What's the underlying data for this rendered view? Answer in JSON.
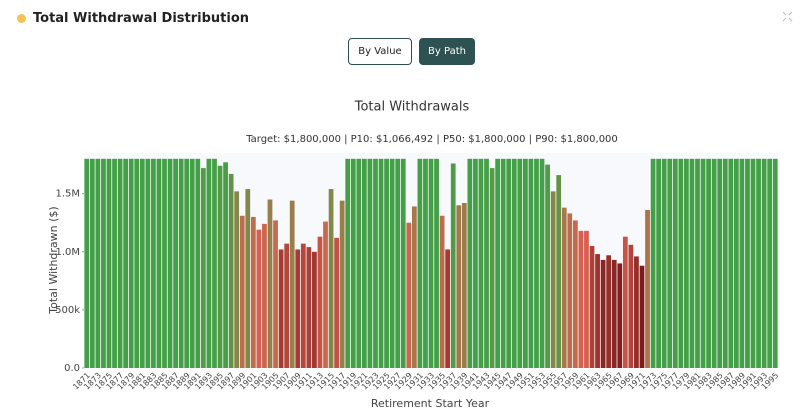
{
  "header": {
    "title": "Total Withdrawal Distribution"
  },
  "buttons": [
    "By Value",
    "By Path"
  ],
  "chart_data": {
    "type": "bar",
    "title": "Total Withdrawals",
    "subtitle": "Target: $1,800,000 | P10: $1,066,492 | P50: $1,800,000 | P90: $1,800,000",
    "x_label": "Retirement Start Year",
    "y_label": "Total Withdrawn ($)",
    "categories": [
      "1871",
      null,
      "1873",
      null,
      "1875",
      null,
      "1877",
      null,
      "1879",
      null,
      "1881",
      null,
      "1883",
      null,
      "1885",
      null,
      "1887",
      null,
      "1889",
      null,
      "1891",
      null,
      "1893",
      null,
      "1895",
      null,
      "1897",
      null,
      "1899",
      null,
      "1901",
      null,
      "1903",
      null,
      "1905",
      null,
      "1907",
      null,
      "1909",
      null,
      "1911",
      null,
      "1913",
      null,
      "1915",
      null,
      "1917",
      null,
      "1919",
      null,
      "1921",
      null,
      "1923",
      null,
      "1925",
      null,
      "1927",
      null,
      "1929",
      null,
      "1931",
      null,
      "1933",
      null,
      "1935",
      null,
      "1937",
      null,
      "1939",
      null,
      "1941",
      null,
      "1943",
      null,
      "1945",
      null,
      "1947",
      null,
      "1949",
      null,
      "1951",
      null,
      "1953",
      null,
      "1955",
      null,
      "1957",
      null,
      "1959",
      null,
      "1961",
      null,
      "1963",
      null,
      "1965",
      null,
      "1967",
      null,
      "1969",
      null,
      "1971",
      null,
      "1973",
      null,
      "1975",
      null,
      "1977",
      null,
      "1979",
      null,
      "1981",
      null,
      "1983",
      null,
      "1985",
      null,
      "1987",
      null,
      "1989",
      null,
      "1991",
      null,
      "1993",
      null,
      "1995"
    ],
    "values": [
      1800000,
      1800000,
      1800000,
      1800000,
      1800000,
      1800000,
      1800000,
      1800000,
      1800000,
      1800000,
      1800000,
      1800000,
      1800000,
      1800000,
      1800000,
      1800000,
      1800000,
      1800000,
      1800000,
      1800000,
      1800000,
      1720000,
      1800000,
      1800000,
      1740000,
      1770000,
      1670000,
      1520000,
      1310000,
      1540000,
      1300000,
      1190000,
      1240000,
      1450000,
      1270000,
      1020000,
      1070000,
      1440000,
      1020000,
      1070000,
      1040000,
      1000000,
      1130000,
      1260000,
      1540000,
      1120000,
      1440000,
      1800000,
      1800000,
      1800000,
      1800000,
      1800000,
      1800000,
      1800000,
      1800000,
      1800000,
      1800000,
      1800000,
      1250000,
      1390000,
      1800000,
      1800000,
      1800000,
      1800000,
      1310000,
      1020000,
      1760000,
      1400000,
      1420000,
      1800000,
      1800000,
      1800000,
      1800000,
      1720000,
      1800000,
      1800000,
      1800000,
      1800000,
      1800000,
      1800000,
      1800000,
      1800000,
      1800000,
      1750000,
      1520000,
      1660000,
      1380000,
      1330000,
      1270000,
      1180000,
      1180000,
      1050000,
      980000,
      930000,
      970000,
      930000,
      900000,
      1130000,
      1060000,
      960000,
      880000,
      1360000,
      1800000,
      1800000,
      1800000,
      1800000,
      1800000,
      1800000,
      1800000,
      1800000,
      1800000,
      1800000,
      1800000,
      1800000,
      1800000,
      1800000,
      1800000,
      1800000,
      1800000,
      1800000,
      1800000,
      1800000,
      1800000,
      1800000,
      1800000
    ],
    "colors": [
      "#7b1c1c",
      "#d9604f",
      "#8c8448",
      "#43a047"
    ],
    "ylim": [
      0,
      1850000
    ],
    "yticks": [
      {
        "value": 0,
        "label": "0.0"
      },
      {
        "value": 500000,
        "label": "500k"
      },
      {
        "value": 1000000,
        "label": "1.0M"
      },
      {
        "value": 1500000,
        "label": "1.5M"
      }
    ]
  }
}
